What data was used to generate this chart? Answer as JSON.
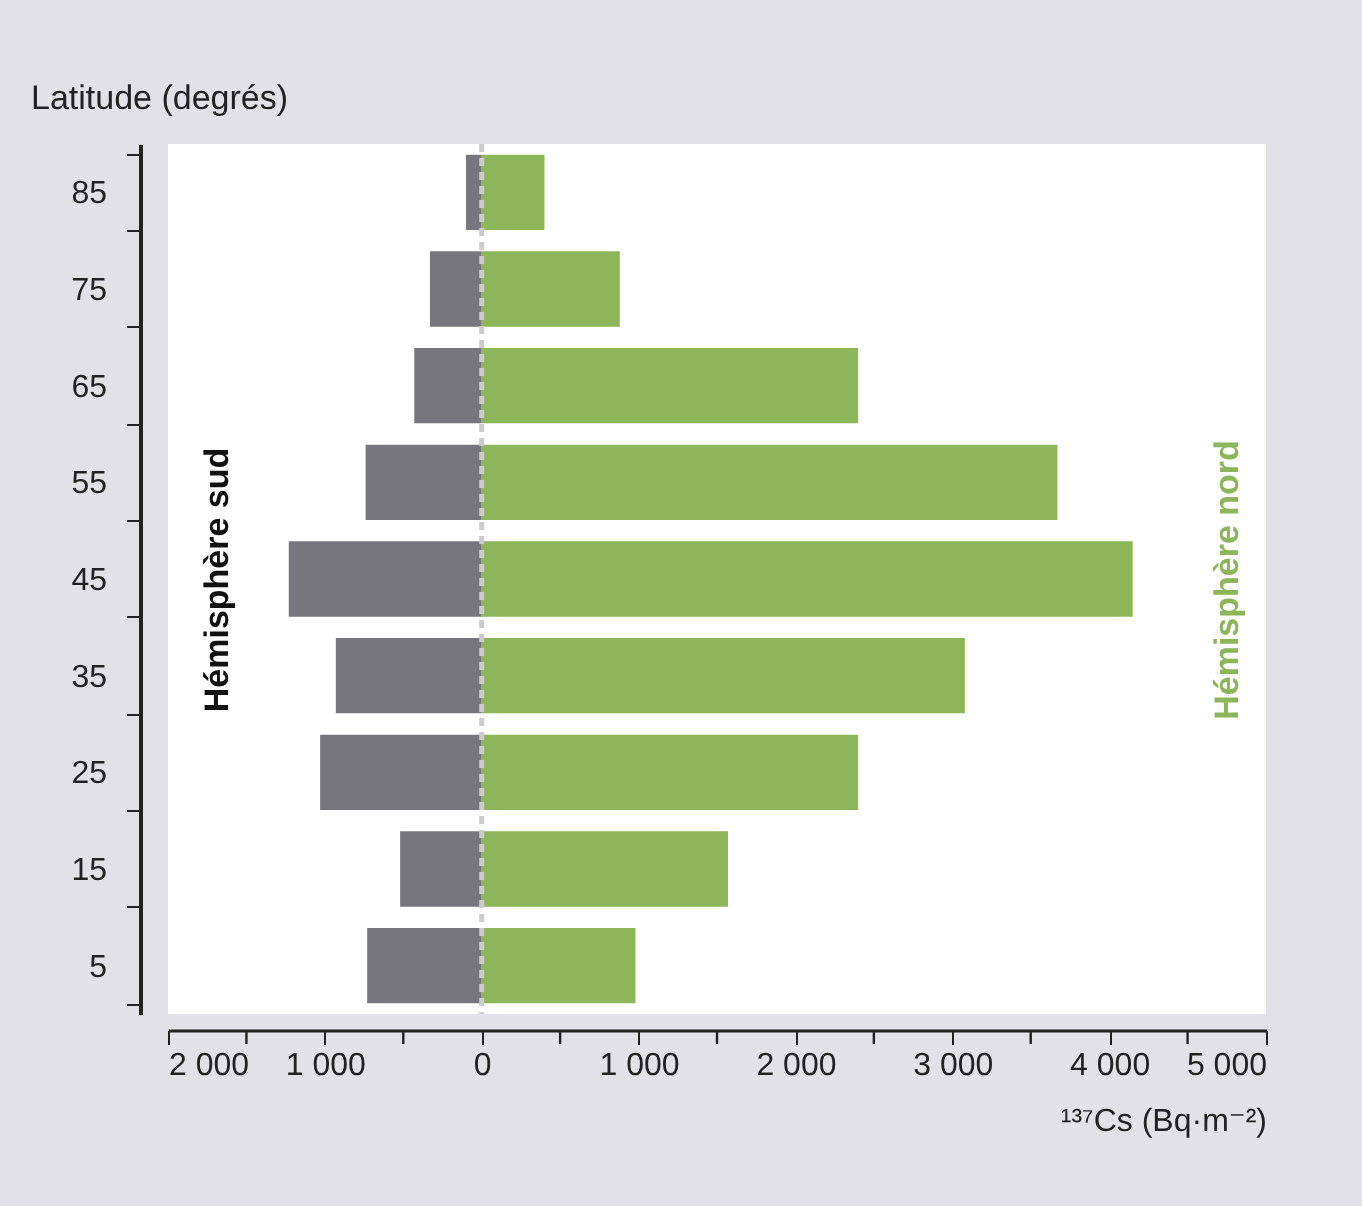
{
  "chart_data": {
    "type": "bar",
    "orientation": "horizontal",
    "xlabel": "¹³⁷Cs (Bq·m⁻²)",
    "ylabel": "Latitude (degrés)",
    "categories": [
      "85",
      "75",
      "65",
      "55",
      "45",
      "35",
      "25",
      "15",
      "5"
    ],
    "series": [
      {
        "name": "Hémisphère sud",
        "color": "#77767e",
        "values": [
          -100,
          -330,
          -430,
          -740,
          -1230,
          -930,
          -1030,
          -520,
          -730
        ]
      },
      {
        "name": "Hémisphère nord",
        "color": "#8db65b",
        "values": [
          400,
          880,
          2400,
          3670,
          4150,
          3080,
          2400,
          1570,
          980
        ]
      }
    ],
    "xlim": [
      -2000,
      5000
    ],
    "xticks": [
      {
        "value": -2000,
        "label": "2 000"
      },
      {
        "value": -1500,
        "label": null
      },
      {
        "value": -1000,
        "label": "1 000"
      },
      {
        "value": -500,
        "label": null
      },
      0,
      {
        "value": 500,
        "label": null
      },
      {
        "value": 1000,
        "label": "1 000"
      },
      {
        "value": 1500,
        "label": null
      },
      {
        "value": 2000,
        "label": "2 000"
      },
      {
        "value": 2500,
        "label": null
      },
      {
        "value": 3000,
        "label": "3 000"
      },
      {
        "value": 3500,
        "label": null
      },
      {
        "value": 4000,
        "label": "4 000"
      },
      {
        "value": 4500,
        "label": null
      },
      {
        "value": 5000,
        "label": "5 000"
      }
    ],
    "ref_lines": [
      {
        "axis": "x",
        "value": 0,
        "color": "#cccccc",
        "line_style": "dashed"
      }
    ],
    "stacked": true,
    "grid": false
  }
}
